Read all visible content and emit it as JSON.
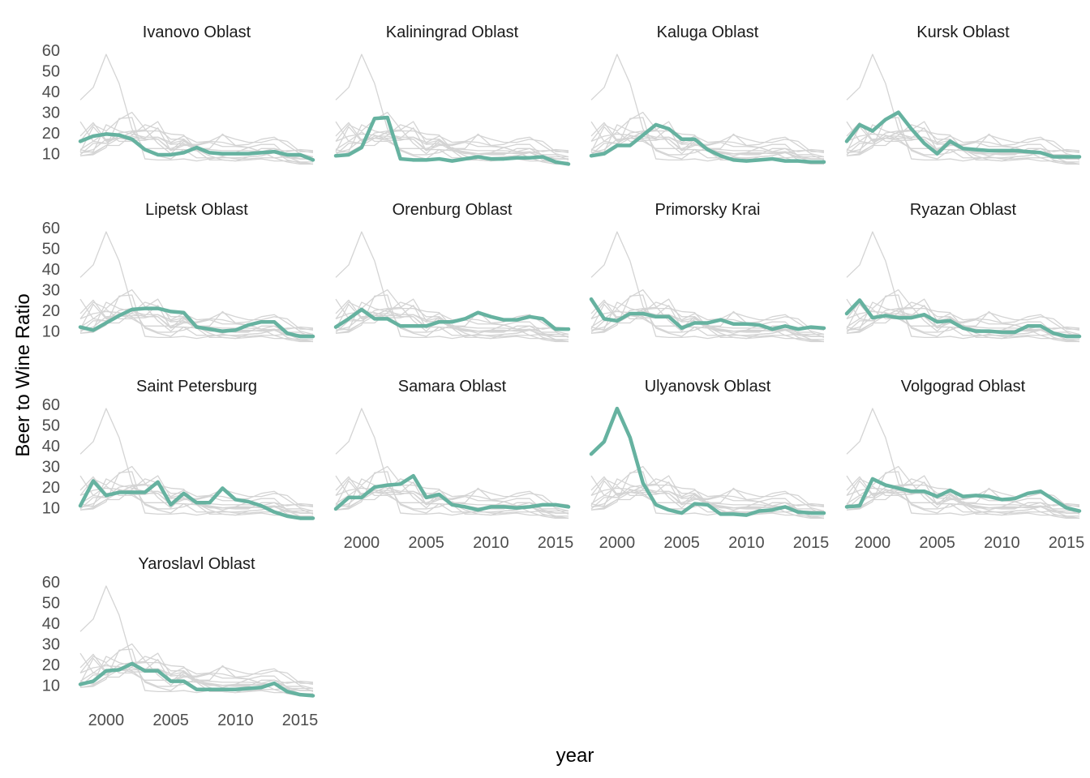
{
  "chart_data": {
    "type": "line",
    "layout": "small-multiples facet grid",
    "xlabel": "year",
    "ylabel": "Beer to Wine Ratio",
    "x": [
      1998,
      1999,
      2000,
      2001,
      2002,
      2003,
      2004,
      2005,
      2006,
      2007,
      2008,
      2009,
      2010,
      2011,
      2012,
      2013,
      2014,
      2015,
      2016
    ],
    "xlim": [
      1998,
      2016
    ],
    "ylim": [
      4,
      60
    ],
    "x_ticks": [
      2000,
      2005,
      2010,
      2015
    ],
    "y_ticks": [
      10,
      20,
      30,
      40,
      50,
      60
    ],
    "grid": false,
    "highlight_color": "#66b2a0",
    "background_line_color": "#d4d4d4",
    "panels": [
      {
        "title": "Ivanovo Oblast",
        "values": [
          16,
          18.5,
          19.5,
          19,
          17,
          12,
          9.5,
          9.5,
          10.5,
          13,
          10.5,
          10,
          10,
          10,
          10.5,
          11,
          9.5,
          9.5,
          7
        ]
      },
      {
        "title": "Kaliningrad Oblast",
        "values": [
          9,
          9.5,
          13,
          27,
          27.5,
          7.5,
          7,
          7,
          7.5,
          6.5,
          7.5,
          8.5,
          7.5,
          7.5,
          8,
          8,
          8.5,
          6,
          5
        ]
      },
      {
        "title": "Kaluga Oblast",
        "values": [
          9,
          10,
          14,
          14,
          19,
          24,
          22,
          17,
          17,
          12,
          9,
          7,
          6.5,
          7,
          7.5,
          6.5,
          6.5,
          6,
          6
        ]
      },
      {
        "title": "Kursk Oblast",
        "values": [
          16,
          24,
          21,
          26.5,
          30,
          22,
          15,
          10,
          16,
          12.5,
          12,
          11.5,
          11.5,
          11.5,
          11,
          10.5,
          8.5,
          8.5,
          8.5
        ]
      },
      {
        "title": "Lipetsk Oblast",
        "values": [
          12,
          10.5,
          14,
          17.5,
          20.5,
          21,
          21,
          19.5,
          19,
          12,
          11,
          10,
          10.5,
          13,
          14.5,
          14.5,
          9,
          7.5,
          7.5
        ]
      },
      {
        "title": "Orenburg Oblast",
        "values": [
          12,
          16,
          20.5,
          16,
          16,
          12.5,
          12.5,
          12.5,
          14.5,
          14.5,
          16,
          19,
          17,
          15.5,
          15.5,
          17,
          16,
          11,
          11
        ]
      },
      {
        "title": "Primorsky Krai",
        "values": [
          25.5,
          16,
          15,
          18.5,
          18.5,
          17,
          17,
          11.5,
          14,
          14,
          15.5,
          13.5,
          13.5,
          13,
          11,
          12.5,
          11,
          12,
          11.5
        ]
      },
      {
        "title": "Ryazan Oblast",
        "values": [
          18.5,
          25,
          16.5,
          17.5,
          16.5,
          16.5,
          18,
          14.5,
          15,
          11.5,
          10,
          10,
          9.5,
          9.5,
          12.5,
          12.5,
          9,
          7.5,
          7.5
        ]
      },
      {
        "title": "Saint Petersburg",
        "values": [
          11,
          23,
          16,
          17.5,
          17.5,
          17.5,
          22.5,
          11.5,
          17,
          12.5,
          12.5,
          19.5,
          14,
          13,
          11,
          8,
          6,
          5,
          5
        ]
      },
      {
        "title": "Samara Oblast",
        "values": [
          9.5,
          15,
          15,
          20,
          21,
          21.5,
          25.5,
          15,
          16.5,
          11.5,
          10.5,
          9,
          10.5,
          10.5,
          10,
          10.5,
          11.5,
          11.5,
          10.5
        ]
      },
      {
        "title": "Ulyanovsk Oblast",
        "values": [
          36,
          42,
          58,
          44,
          22,
          11.5,
          9,
          7.5,
          12,
          11.5,
          7,
          7,
          6.5,
          8.5,
          9,
          10.5,
          8,
          7.5,
          7.5
        ]
      },
      {
        "title": "Volgograd Oblast",
        "values": [
          10.5,
          11,
          24,
          21,
          19.5,
          18,
          18,
          15.5,
          18.5,
          15.5,
          16,
          15.5,
          14,
          14.5,
          17,
          18,
          14,
          10,
          8.5
        ]
      },
      {
        "title": "Yaroslavl Oblast",
        "values": [
          10.5,
          12,
          17,
          17.5,
          20.5,
          17,
          17,
          12,
          12,
          8,
          8,
          8,
          8,
          8.5,
          9,
          11,
          7,
          5.5,
          5
        ]
      }
    ]
  }
}
